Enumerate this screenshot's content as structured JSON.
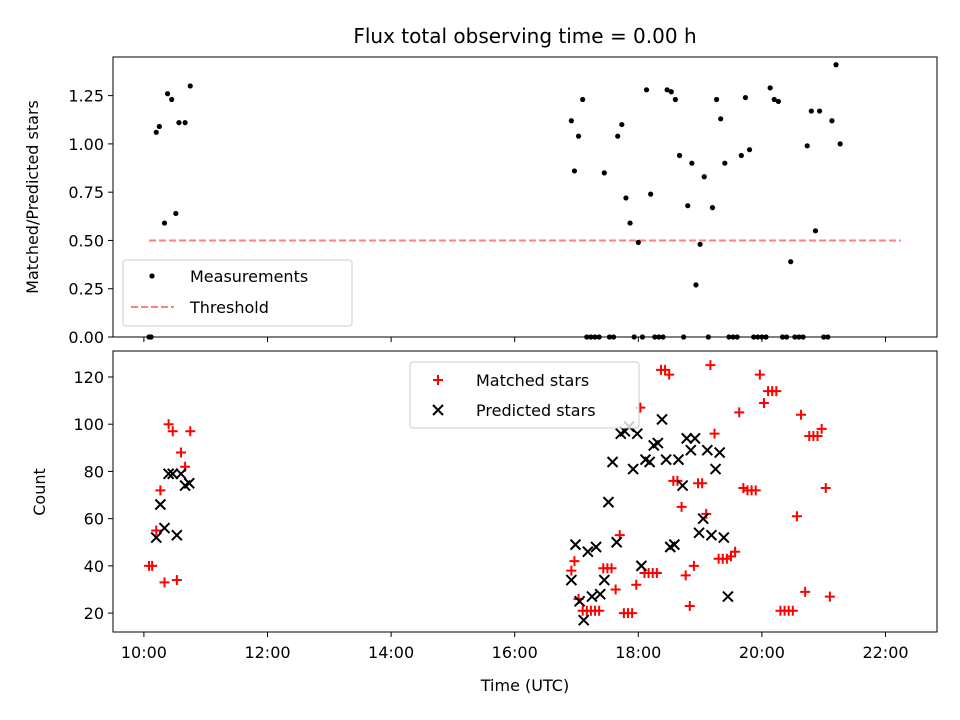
{
  "title": "Flux total observing time = 0.00 h",
  "xlabel": "Time (UTC)",
  "colors": {
    "measurements": "#000000",
    "threshold": "#ff7f7f",
    "matched": "#ff0000",
    "predicted": "#000000"
  },
  "chart_data": [
    {
      "type": "scatter",
      "panel": "top",
      "ylabel": "Matched/Predicted stars",
      "ylim": [
        0,
        1.45
      ],
      "xlim": [
        "09:30",
        "22:50"
      ],
      "yticks": [
        "0.00",
        "0.25",
        "0.50",
        "0.75",
        "1.00",
        "1.25"
      ],
      "xticks": [],
      "legend": {
        "placement": "lower-left",
        "entries": [
          "Measurements",
          "Threshold"
        ]
      },
      "threshold": {
        "name": "Threshold",
        "y": 0.5,
        "x_start": "10:05",
        "x_end": "22:15"
      },
      "series": [
        {
          "name": "Measurements",
          "marker": "dot",
          "points": [
            [
              "10:05",
              0.0
            ],
            [
              "10:07",
              0.0
            ],
            [
              "10:12",
              1.06
            ],
            [
              "10:15",
              1.09
            ],
            [
              "10:20",
              0.59
            ],
            [
              "10:23",
              1.26
            ],
            [
              "10:27",
              1.23
            ],
            [
              "10:31",
              0.64
            ],
            [
              "10:34",
              1.11
            ],
            [
              "10:40",
              1.11
            ],
            [
              "10:45",
              1.3
            ],
            [
              "16:55",
              1.12
            ],
            [
              "16:58",
              0.86
            ],
            [
              "17:02",
              1.04
            ],
            [
              "17:06",
              1.23
            ],
            [
              "17:10",
              0.0
            ],
            [
              "17:14",
              0.0
            ],
            [
              "17:18",
              0.0
            ],
            [
              "17:22",
              0.0
            ],
            [
              "17:27",
              0.85
            ],
            [
              "17:32",
              0.0
            ],
            [
              "17:36",
              0.0
            ],
            [
              "17:40",
              1.04
            ],
            [
              "17:44",
              1.1
            ],
            [
              "17:48",
              0.72
            ],
            [
              "17:52",
              0.59
            ],
            [
              "17:56",
              0.0
            ],
            [
              "18:00",
              0.49
            ],
            [
              "18:04",
              0.0
            ],
            [
              "18:08",
              1.28
            ],
            [
              "18:12",
              0.74
            ],
            [
              "18:16",
              0.0
            ],
            [
              "18:20",
              0.0
            ],
            [
              "18:24",
              0.0
            ],
            [
              "18:28",
              1.28
            ],
            [
              "18:32",
              1.27
            ],
            [
              "18:36",
              1.23
            ],
            [
              "18:40",
              0.94
            ],
            [
              "18:44",
              0.0
            ],
            [
              "18:48",
              0.68
            ],
            [
              "18:52",
              0.9
            ],
            [
              "18:56",
              0.27
            ],
            [
              "19:00",
              0.48
            ],
            [
              "19:04",
              0.83
            ],
            [
              "19:08",
              0.0
            ],
            [
              "19:12",
              0.67
            ],
            [
              "19:16",
              1.23
            ],
            [
              "19:20",
              1.13
            ],
            [
              "19:24",
              0.9
            ],
            [
              "19:28",
              0.0
            ],
            [
              "19:32",
              0.0
            ],
            [
              "19:36",
              0.0
            ],
            [
              "19:40",
              0.94
            ],
            [
              "19:44",
              1.24
            ],
            [
              "19:48",
              0.97
            ],
            [
              "19:52",
              0.0
            ],
            [
              "19:56",
              0.0
            ],
            [
              "20:00",
              0.0
            ],
            [
              "20:04",
              0.0
            ],
            [
              "20:08",
              1.29
            ],
            [
              "20:12",
              1.23
            ],
            [
              "20:16",
              1.22
            ],
            [
              "20:20",
              0.0
            ],
            [
              "20:24",
              0.0
            ],
            [
              "20:28",
              0.39
            ],
            [
              "20:32",
              0.0
            ],
            [
              "20:36",
              0.0
            ],
            [
              "20:40",
              0.0
            ],
            [
              "20:44",
              0.99
            ],
            [
              "20:48",
              1.17
            ],
            [
              "20:52",
              0.55
            ],
            [
              "20:56",
              1.17
            ],
            [
              "21:00",
              0.0
            ],
            [
              "21:04",
              0.0
            ],
            [
              "21:08",
              1.12
            ],
            [
              "21:12",
              1.41
            ],
            [
              "21:16",
              1.0
            ]
          ]
        }
      ]
    },
    {
      "type": "scatter",
      "panel": "bottom",
      "ylabel": "Count",
      "xlabel": "Time (UTC)",
      "ylim": [
        12,
        131
      ],
      "xlim": [
        "09:30",
        "22:50"
      ],
      "xticks": [
        "10:00",
        "12:00",
        "14:00",
        "16:00",
        "18:00",
        "20:00",
        "22:00"
      ],
      "yticks": [
        "20",
        "40",
        "60",
        "80",
        "100",
        "120"
      ],
      "legend": {
        "placement": "upper-center",
        "entries": [
          "Matched stars",
          "Predicted stars"
        ]
      },
      "series": [
        {
          "name": "Matched stars",
          "marker": "plus",
          "points": [
            [
              "10:05",
              40
            ],
            [
              "10:08",
              40
            ],
            [
              "10:12",
              55
            ],
            [
              "10:16",
              72
            ],
            [
              "10:20",
              33
            ],
            [
              "10:24",
              100
            ],
            [
              "10:28",
              97
            ],
            [
              "10:32",
              34
            ],
            [
              "10:36",
              88
            ],
            [
              "10:40",
              82
            ],
            [
              "10:45",
              97
            ],
            [
              "16:55",
              38
            ],
            [
              "16:58",
              42
            ],
            [
              "17:02",
              26
            ],
            [
              "17:06",
              21
            ],
            [
              "17:10",
              21
            ],
            [
              "17:14",
              21
            ],
            [
              "17:18",
              21
            ],
            [
              "17:22",
              21
            ],
            [
              "17:26",
              39
            ],
            [
              "17:30",
              39
            ],
            [
              "17:34",
              39
            ],
            [
              "17:38",
              30
            ],
            [
              "17:42",
              53
            ],
            [
              "17:46",
              20
            ],
            [
              "17:50",
              20
            ],
            [
              "17:54",
              20
            ],
            [
              "17:58",
              32
            ],
            [
              "18:02",
              107
            ],
            [
              "18:06",
              37
            ],
            [
              "18:10",
              37
            ],
            [
              "18:14",
              37
            ],
            [
              "18:18",
              37
            ],
            [
              "18:22",
              123
            ],
            [
              "18:26",
              123
            ],
            [
              "18:30",
              121
            ],
            [
              "18:34",
              76
            ],
            [
              "18:38",
              76
            ],
            [
              "18:42",
              65
            ],
            [
              "18:46",
              36
            ],
            [
              "18:50",
              23
            ],
            [
              "18:54",
              40
            ],
            [
              "18:58",
              75
            ],
            [
              "19:02",
              75
            ],
            [
              "19:06",
              62
            ],
            [
              "19:10",
              125
            ],
            [
              "19:14",
              96
            ],
            [
              "19:18",
              43
            ],
            [
              "19:22",
              43
            ],
            [
              "19:26",
              43
            ],
            [
              "19:30",
              44
            ],
            [
              "19:34",
              46
            ],
            [
              "19:38",
              105
            ],
            [
              "19:42",
              73
            ],
            [
              "19:46",
              72
            ],
            [
              "19:50",
              72
            ],
            [
              "19:54",
              72
            ],
            [
              "19:58",
              121
            ],
            [
              "20:02",
              109
            ],
            [
              "20:06",
              114
            ],
            [
              "20:10",
              114
            ],
            [
              "20:14",
              114
            ],
            [
              "20:18",
              21
            ],
            [
              "20:22",
              21
            ],
            [
              "20:26",
              21
            ],
            [
              "20:30",
              21
            ],
            [
              "20:34",
              61
            ],
            [
              "20:38",
              104
            ],
            [
              "20:42",
              29
            ],
            [
              "20:46",
              95
            ],
            [
              "20:50",
              95
            ],
            [
              "20:54",
              95
            ],
            [
              "20:58",
              98
            ],
            [
              "21:02",
              73
            ],
            [
              "21:06",
              27
            ]
          ]
        },
        {
          "name": "Predicted stars",
          "marker": "x",
          "points": [
            [
              "10:12",
              52
            ],
            [
              "10:16",
              66
            ],
            [
              "10:20",
              56
            ],
            [
              "10:24",
              79
            ],
            [
              "10:28",
              79
            ],
            [
              "10:32",
              53
            ],
            [
              "10:36",
              79
            ],
            [
              "10:40",
              74
            ],
            [
              "10:44",
              75
            ],
            [
              "16:55",
              34
            ],
            [
              "16:59",
              49
            ],
            [
              "17:03",
              25
            ],
            [
              "17:07",
              17
            ],
            [
              "17:11",
              46
            ],
            [
              "17:15",
              27
            ],
            [
              "17:19",
              48
            ],
            [
              "17:23",
              28
            ],
            [
              "17:27",
              34
            ],
            [
              "17:31",
              67
            ],
            [
              "17:35",
              84
            ],
            [
              "17:39",
              50
            ],
            [
              "17:43",
              96
            ],
            [
              "17:47",
              97
            ],
            [
              "17:51",
              99
            ],
            [
              "17:55",
              81
            ],
            [
              "17:59",
              96
            ],
            [
              "18:03",
              40
            ],
            [
              "18:07",
              85
            ],
            [
              "18:11",
              84
            ],
            [
              "18:15",
              91
            ],
            [
              "18:19",
              92
            ],
            [
              "18:23",
              102
            ],
            [
              "18:27",
              85
            ],
            [
              "18:31",
              48
            ],
            [
              "18:35",
              49
            ],
            [
              "18:39",
              85
            ],
            [
              "18:43",
              74
            ],
            [
              "18:47",
              94
            ],
            [
              "18:51",
              89
            ],
            [
              "18:55",
              94
            ],
            [
              "18:59",
              54
            ],
            [
              "19:03",
              60
            ],
            [
              "19:07",
              89
            ],
            [
              "19:11",
              53
            ],
            [
              "19:15",
              81
            ],
            [
              "19:19",
              88
            ],
            [
              "19:23",
              52
            ],
            [
              "19:27",
              27
            ]
          ]
        }
      ]
    }
  ]
}
